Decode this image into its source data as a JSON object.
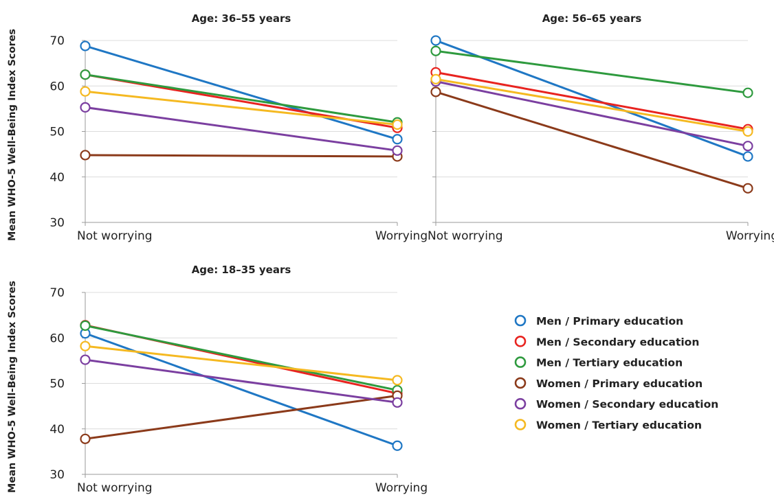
{
  "chart_data": [
    {
      "type": "line",
      "title": "Age: 36–55 years",
      "ylabel": "Mean WHO-5 Well-Being Index Scores",
      "categories": [
        "Not worrying",
        "Worrying"
      ],
      "ylim": [
        30,
        70
      ],
      "yticks": [
        "30",
        "40",
        "50",
        "60",
        "70"
      ],
      "show_y_tick_labels": true,
      "grid": true,
      "series": [
        {
          "name": "Men / Primary education",
          "color": "#1f77c4",
          "values": [
            68.8,
            48.3
          ]
        },
        {
          "name": "Men / Secondary education",
          "color": "#e8231f",
          "values": [
            62.5,
            50.8
          ]
        },
        {
          "name": "Men / Tertiary education",
          "color": "#2e9a3e",
          "values": [
            62.5,
            52.0
          ]
        },
        {
          "name": "Women / Primary education",
          "color": "#8b3a1a",
          "values": [
            44.8,
            44.5
          ]
        },
        {
          "name": "Women / Secondary education",
          "color": "#7b3fa0",
          "values": [
            55.3,
            45.8
          ]
        },
        {
          "name": "Women / Tertiary education",
          "color": "#f5b921",
          "values": [
            58.8,
            51.5
          ]
        }
      ]
    },
    {
      "type": "line",
      "title": "Age: 56–65 years",
      "ylabel": "",
      "categories": [
        "Not worrying",
        "Worrying"
      ],
      "ylim": [
        30,
        70
      ],
      "yticks": [
        "30",
        "40",
        "50",
        "60",
        "70"
      ],
      "show_y_tick_labels": false,
      "grid": true,
      "series": [
        {
          "name": "Men / Primary education",
          "color": "#1f77c4",
          "values": [
            70.0,
            44.5
          ]
        },
        {
          "name": "Men / Secondary education",
          "color": "#e8231f",
          "values": [
            63.0,
            50.5
          ]
        },
        {
          "name": "Men / Tertiary education",
          "color": "#2e9a3e",
          "values": [
            67.7,
            58.5
          ]
        },
        {
          "name": "Women / Primary education",
          "color": "#8b3a1a",
          "values": [
            58.7,
            37.5
          ]
        },
        {
          "name": "Women / Secondary education",
          "color": "#7b3fa0",
          "values": [
            61.0,
            46.8
          ]
        },
        {
          "name": "Women / Tertiary education",
          "color": "#f5b921",
          "values": [
            61.5,
            50.0
          ]
        }
      ]
    },
    {
      "type": "line",
      "title": "Age: 18–35 years",
      "ylabel": "Mean WHO-5 Well-Being Index Scores",
      "categories": [
        "Not worrying",
        "Worrying"
      ],
      "ylim": [
        30,
        70
      ],
      "yticks": [
        "30",
        "40",
        "50",
        "60",
        "70"
      ],
      "show_y_tick_labels": true,
      "grid": true,
      "series": [
        {
          "name": "Men / Primary education",
          "color": "#1f77c4",
          "values": [
            61.0,
            36.3
          ]
        },
        {
          "name": "Men / Secondary education",
          "color": "#e8231f",
          "values": [
            62.8,
            47.8
          ]
        },
        {
          "name": "Men / Tertiary education",
          "color": "#2e9a3e",
          "values": [
            62.7,
            48.5
          ]
        },
        {
          "name": "Women / Primary education",
          "color": "#8b3a1a",
          "values": [
            37.8,
            47.3
          ]
        },
        {
          "name": "Women / Secondary education",
          "color": "#7b3fa0",
          "values": [
            55.2,
            45.8
          ]
        },
        {
          "name": "Women / Tertiary education",
          "color": "#f5b921",
          "values": [
            58.2,
            50.7
          ]
        }
      ]
    }
  ],
  "legend": {
    "placement": "bottom-right",
    "items": [
      {
        "label": "Men / Primary education",
        "color": "#1f77c4"
      },
      {
        "label": "Men / Secondary education",
        "color": "#e8231f"
      },
      {
        "label": "Men / Tertiary education",
        "color": "#2e9a3e"
      },
      {
        "label": "Women / Primary education",
        "color": "#8b3a1a"
      },
      {
        "label": "Women / Secondary education",
        "color": "#7b3fa0"
      },
      {
        "label": "Women / Tertiary education",
        "color": "#f5b921"
      }
    ]
  }
}
